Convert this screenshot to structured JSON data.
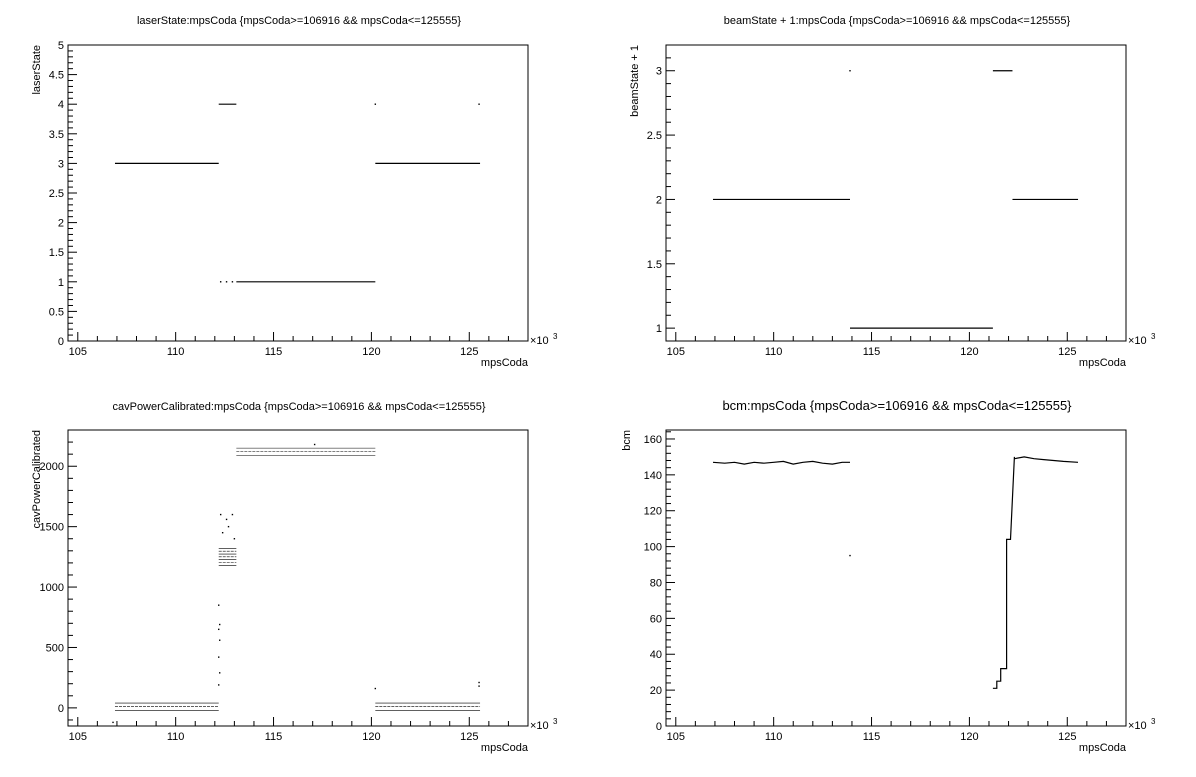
{
  "chart_data": [
    {
      "type": "scatter",
      "title": "laserState:mpsCoda {mpsCoda>=106916 && mpsCoda<=125555}",
      "xlabel": "mpsCoda",
      "ylabel": "laserState",
      "x_multiplier_label": "×10",
      "x_multiplier_exp": "3",
      "xlim": [
        104.5,
        128
      ],
      "ylim": [
        0,
        5
      ],
      "x_ticks": [
        "105",
        "110",
        "115",
        "120",
        "125"
      ],
      "y_ticks": [
        "0",
        "0.5",
        "1",
        "1.5",
        "2",
        "2.5",
        "3",
        "3.5",
        "4",
        "4.5",
        "5"
      ],
      "segments": [
        {
          "x": [
            106.9,
            112.2
          ],
          "y": 3
        },
        {
          "x": [
            112.2,
            113.1
          ],
          "y": 4
        },
        {
          "x": [
            113.1,
            120.2
          ],
          "y": 1
        },
        {
          "x": [
            120.2,
            125.55
          ],
          "y": 3
        }
      ],
      "points": [
        {
          "x": 112.3,
          "y": 1
        },
        {
          "x": 112.6,
          "y": 1
        },
        {
          "x": 112.9,
          "y": 1
        },
        {
          "x": 120.2,
          "y": 4
        },
        {
          "x": 125.5,
          "y": 4
        }
      ]
    },
    {
      "type": "scatter",
      "title": "beamState + 1:mpsCoda {mpsCoda>=106916 && mpsCoda<=125555}",
      "xlabel": "mpsCoda",
      "ylabel": "beamState + 1",
      "x_multiplier_label": "×10",
      "x_multiplier_exp": "3",
      "xlim": [
        104.5,
        128
      ],
      "ylim": [
        0.9,
        3.2
      ],
      "x_ticks": [
        "105",
        "110",
        "115",
        "120",
        "125"
      ],
      "y_ticks": [
        "1",
        "1.5",
        "2",
        "2.5",
        "3"
      ],
      "segments": [
        {
          "x": [
            106.9,
            113.9
          ],
          "y": 2
        },
        {
          "x": [
            113.9,
            121.2
          ],
          "y": 1
        },
        {
          "x": [
            121.2,
            122.2
          ],
          "y": 3
        },
        {
          "x": [
            122.2,
            125.55
          ],
          "y": 2
        }
      ],
      "points": [
        {
          "x": 113.9,
          "y": 3
        }
      ]
    },
    {
      "type": "scatter",
      "title": "cavPowerCalibrated:mpsCoda {mpsCoda>=106916 && mpsCoda<=125555}",
      "xlabel": "mpsCoda",
      "ylabel": "cavPowerCalibrated",
      "x_multiplier_label": "×10",
      "x_multiplier_exp": "3",
      "xlim": [
        104.5,
        128
      ],
      "ylim": [
        -150,
        2300
      ],
      "x_ticks": [
        "105",
        "110",
        "115",
        "120",
        "125"
      ],
      "y_ticks": [
        "0",
        "500",
        "1000",
        "1500",
        "2000"
      ],
      "bands": [
        {
          "x": [
            106.9,
            112.2
          ],
          "y": [
            -20,
            40
          ]
        },
        {
          "x": [
            113.1,
            120.2
          ],
          "y": [
            2090,
            2150
          ]
        },
        {
          "x": [
            120.2,
            125.55
          ],
          "y": [
            -20,
            40
          ]
        },
        {
          "x": [
            112.2,
            113.1
          ],
          "y": [
            1180,
            1320
          ]
        }
      ],
      "points": [
        {
          "x": 112.2,
          "y": 190
        },
        {
          "x": 112.25,
          "y": 290
        },
        {
          "x": 112.2,
          "y": 420
        },
        {
          "x": 112.25,
          "y": 560
        },
        {
          "x": 112.2,
          "y": 650
        },
        {
          "x": 112.25,
          "y": 690
        },
        {
          "x": 112.2,
          "y": 850
        },
        {
          "x": 112.3,
          "y": 1600
        },
        {
          "x": 112.6,
          "y": 1560
        },
        {
          "x": 112.9,
          "y": 1600
        },
        {
          "x": 113.0,
          "y": 1400
        },
        {
          "x": 112.4,
          "y": 1450
        },
        {
          "x": 112.7,
          "y": 1500
        },
        {
          "x": 117.1,
          "y": 2180
        },
        {
          "x": 120.2,
          "y": 160
        },
        {
          "x": 125.5,
          "y": 210
        },
        {
          "x": 125.5,
          "y": 180
        },
        {
          "x": 106.8,
          "y": -120
        }
      ]
    },
    {
      "type": "scatter",
      "title": "bcm:mpsCoda {mpsCoda>=106916 && mpsCoda<=125555}",
      "xlabel": "mpsCoda",
      "ylabel": "bcm",
      "x_multiplier_label": "×10",
      "x_multiplier_exp": "3",
      "xlim": [
        104.5,
        128
      ],
      "ylim": [
        0,
        165
      ],
      "x_ticks": [
        "105",
        "110",
        "115",
        "120",
        "125"
      ],
      "y_ticks": [
        "0",
        "20",
        "40",
        "60",
        "80",
        "100",
        "120",
        "140",
        "160"
      ],
      "series": [
        {
          "x": [
            106.9,
            107.5,
            108.0,
            108.5,
            109.0,
            109.5,
            110.0,
            110.5,
            111.0,
            111.5,
            112.0,
            112.5,
            113.0,
            113.5,
            113.9
          ],
          "y": [
            147,
            146.5,
            147,
            146,
            147,
            146.5,
            147,
            147.5,
            146,
            147,
            147.5,
            146.5,
            146,
            147,
            147
          ]
        },
        {
          "x": [
            121.2,
            121.4,
            121.4,
            121.6,
            121.6,
            121.9,
            121.9,
            122.1,
            122.1,
            122.3,
            122.3
          ],
          "y": [
            21,
            21,
            25,
            25,
            32,
            32,
            104,
            104,
            104,
            150,
            150
          ]
        },
        {
          "x": [
            122.3,
            122.8,
            123.3,
            123.8,
            124.3,
            124.8,
            125.55
          ],
          "y": [
            149,
            150,
            149,
            148.5,
            148,
            147.5,
            147
          ]
        }
      ],
      "points": [
        {
          "x": 113.9,
          "y": 95
        }
      ]
    }
  ]
}
